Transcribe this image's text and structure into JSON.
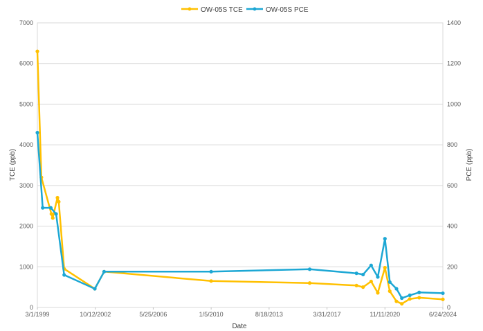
{
  "chart_data": {
    "type": "line",
    "xlabel": "Date",
    "ylabel_left": "TCE (ppb)",
    "ylabel_right": "PCE (ppb)",
    "x_ticks": [
      "3/1/1999",
      "10/12/2002",
      "5/25/2006",
      "1/5/2010",
      "8/18/2013",
      "3/31/2017",
      "11/11/2020",
      "6/24/2024"
    ],
    "x_range": [
      "1999-03-01",
      "2024-06-24"
    ],
    "y_left_range": [
      0,
      7000
    ],
    "y_left_ticks": [
      "0",
      "1000",
      "2000",
      "3000",
      "4000",
      "5000",
      "6000",
      "7000"
    ],
    "y_right_range": [
      0,
      1400
    ],
    "y_right_ticks": [
      "0",
      "200",
      "400",
      "600",
      "800",
      "1000",
      "1200",
      "1400"
    ],
    "grid": true,
    "legend_position": "top-center",
    "series": [
      {
        "name": "OW-05S TCE",
        "axis": "left",
        "color": "#FFC000",
        "points": [
          [
            "1999-03-01",
            6300
          ],
          [
            "1999-06-01",
            3200
          ],
          [
            "2000-01-15",
            2300
          ],
          [
            "2000-02-15",
            2200
          ],
          [
            "2000-06-01",
            2700
          ],
          [
            "2000-07-01",
            2600
          ],
          [
            "2000-11-01",
            950
          ],
          [
            "2002-10-01",
            460
          ],
          [
            "2003-05-01",
            880
          ],
          [
            "2010-01-05",
            650
          ],
          [
            "2016-03-01",
            600
          ],
          [
            "2019-02-01",
            540
          ],
          [
            "2019-07-01",
            500
          ],
          [
            "2020-01-01",
            640
          ],
          [
            "2020-06-01",
            360
          ],
          [
            "2020-11-11",
            980
          ],
          [
            "2021-03-01",
            400
          ],
          [
            "2021-08-01",
            150
          ],
          [
            "2021-12-01",
            90
          ],
          [
            "2022-06-01",
            210
          ],
          [
            "2023-01-01",
            240
          ],
          [
            "2024-06-24",
            200
          ]
        ]
      },
      {
        "name": "OW-05S PCE",
        "axis": "right",
        "color": "#1CA7D4",
        "points": [
          [
            "1999-03-01",
            860
          ],
          [
            "1999-07-01",
            490
          ],
          [
            "2000-01-01",
            490
          ],
          [
            "2000-05-01",
            460
          ],
          [
            "2000-11-01",
            160
          ],
          [
            "2002-10-01",
            92
          ],
          [
            "2003-05-01",
            176
          ],
          [
            "2010-01-05",
            176
          ],
          [
            "2016-03-01",
            188
          ],
          [
            "2019-02-01",
            168
          ],
          [
            "2019-07-01",
            162
          ],
          [
            "2020-01-01",
            207
          ],
          [
            "2020-06-01",
            150
          ],
          [
            "2020-11-11",
            338
          ],
          [
            "2021-03-01",
            125
          ],
          [
            "2021-08-01",
            92
          ],
          [
            "2021-12-01",
            46
          ],
          [
            "2022-06-01",
            60
          ],
          [
            "2023-01-01",
            74
          ],
          [
            "2024-06-24",
            70
          ]
        ]
      }
    ]
  }
}
